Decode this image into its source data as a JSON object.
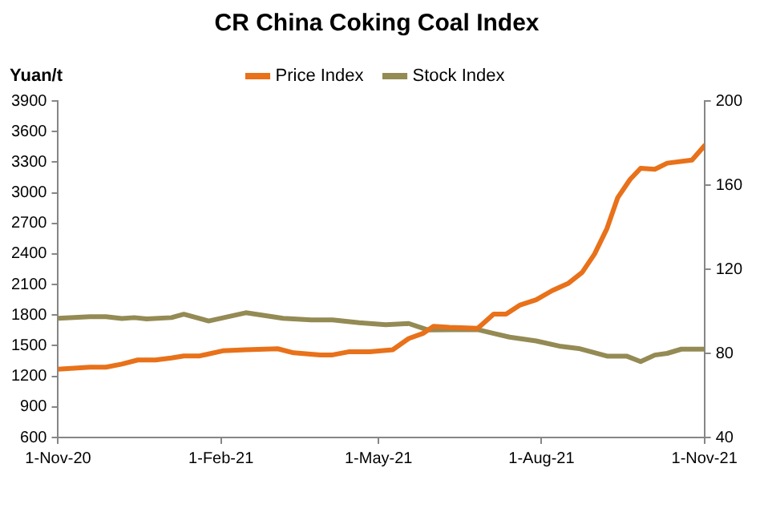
{
  "chart_data": {
    "type": "line",
    "title": "CR China Coking Coal Index",
    "ylabel": "Yuan/t",
    "legend": "top",
    "grid": false,
    "marker": "none",
    "line_style": "solid",
    "xlim": [
      "2020-11-01",
      "2021-11-01"
    ],
    "xticks": [
      {
        "value": "2020-11-01",
        "label": "1-Nov-20"
      },
      {
        "value": "2021-02-01",
        "label": "1-Feb-21"
      },
      {
        "value": "2021-05-01",
        "label": "1-May-21"
      },
      {
        "value": "2021-08-01",
        "label": "1-Aug-21"
      },
      {
        "value": "2021-11-01",
        "label": "1-Nov-21"
      }
    ],
    "ylim": [
      600,
      3900
    ],
    "yticks": [
      600,
      900,
      1200,
      1500,
      1800,
      2100,
      2400,
      2700,
      3000,
      3300,
      3600,
      3900
    ],
    "y2lim": [
      40,
      200
    ],
    "y2ticks": [
      40,
      80,
      120,
      160,
      200
    ],
    "series": [
      {
        "name": "Price Index",
        "color": "#e8711a",
        "x": [
          "2020-11-01",
          "2020-11-19",
          "2020-11-28",
          "2020-12-07",
          "2020-12-16",
          "2020-12-26",
          "2021-01-04",
          "2021-01-11",
          "2021-01-20",
          "2021-02-02",
          "2021-02-15",
          "2021-03-05",
          "2021-03-14",
          "2021-03-29",
          "2021-04-05",
          "2021-04-14",
          "2021-04-26",
          "2021-05-09",
          "2021-05-18",
          "2021-05-26",
          "2021-06-01",
          "2021-06-10",
          "2021-06-26",
          "2021-07-05",
          "2021-07-12",
          "2021-07-20",
          "2021-07-29",
          "2021-08-07",
          "2021-08-16",
          "2021-08-24",
          "2021-08-31",
          "2021-09-07",
          "2021-09-13",
          "2021-09-20",
          "2021-09-26",
          "2021-10-04",
          "2021-10-11",
          "2021-10-25",
          "2021-11-01"
        ],
        "values": [
          1270,
          1290,
          1290,
          1320,
          1360,
          1360,
          1380,
          1400,
          1400,
          1450,
          1460,
          1470,
          1430,
          1410,
          1410,
          1440,
          1440,
          1460,
          1570,
          1620,
          1690,
          1680,
          1670,
          1810,
          1810,
          1900,
          1950,
          2040,
          2110,
          2220,
          2400,
          2650,
          2950,
          3130,
          3240,
          3230,
          3290,
          3320,
          3460
        ]
      },
      {
        "name": "Stock Index",
        "color": "#948a54",
        "axis": "y2",
        "x": [
          "2020-11-01",
          "2020-11-19",
          "2020-11-28",
          "2020-12-07",
          "2020-12-14",
          "2020-12-21",
          "2021-01-04",
          "2021-01-11",
          "2021-01-25",
          "2021-02-15",
          "2021-03-08",
          "2021-03-24",
          "2021-04-05",
          "2021-04-20",
          "2021-05-05",
          "2021-05-18",
          "2021-05-29",
          "2021-06-26",
          "2021-07-05",
          "2021-07-14",
          "2021-07-29",
          "2021-08-12",
          "2021-08-22",
          "2021-09-07",
          "2021-09-18",
          "2021-09-26",
          "2021-10-04",
          "2021-10-11",
          "2021-10-19",
          "2021-11-01"
        ],
        "values": [
          96.7,
          97.4,
          97.4,
          96.6,
          97,
          96.4,
          97,
          98.6,
          95.4,
          99.3,
          96.7,
          95.9,
          95.9,
          94.6,
          93.6,
          94.2,
          91.1,
          91.3,
          89.5,
          87.7,
          85.9,
          83.3,
          82.3,
          78.7,
          78.7,
          76.1,
          79.2,
          80,
          82,
          82
        ]
      }
    ]
  }
}
